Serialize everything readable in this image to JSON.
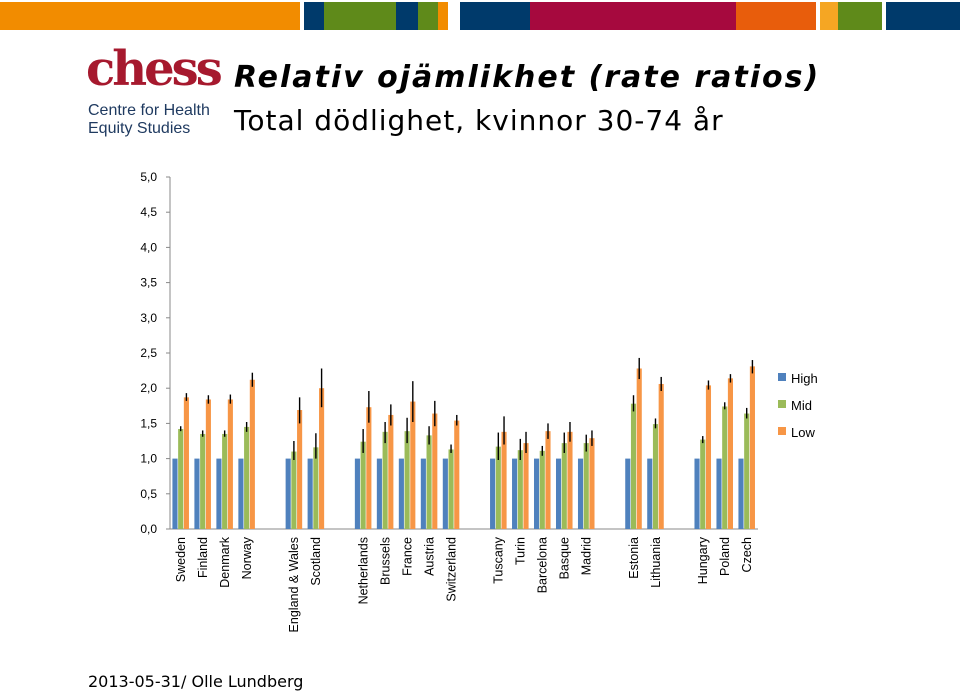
{
  "header": {
    "bar_colors": [
      "#f28c00",
      "#003a6b",
      "#5f8a1a",
      "#003a6b",
      "#5f8a1a",
      "#f28c00",
      "#003a6b",
      "#a6093e",
      "#e85d0c",
      "#f5a623",
      "#5f8a1a",
      "#003a6b"
    ],
    "logo_icon": "chess-logo",
    "logo_word": "chess",
    "logo_line1": "Centre for Health",
    "logo_line2": "Equity Studies",
    "title": "Relativ ojämlikhet (rate ratios)",
    "subtitle": "Total dödlighet, kvinnor 30-74 år"
  },
  "footer": {
    "date": "2013-05-31",
    "author": "Olle Lundberg"
  },
  "chart_data": {
    "type": "bar",
    "categories": [
      "Sweden",
      "Finland",
      "Denmark",
      "Norway",
      "England & Wales",
      "Scotland",
      "Netherlands",
      "Brussels",
      "France",
      "Austria",
      "Switzerland",
      "Tuscany",
      "Turin",
      "Barcelona",
      "Basque",
      "Madrid",
      "Estonia",
      "Lithuania",
      "Hungary",
      "Poland",
      "Czech"
    ],
    "category_groups": [
      4,
      2,
      5,
      5,
      2,
      3
    ],
    "series": [
      {
        "name": "High",
        "color": "#4f81bd",
        "values": [
          1,
          1,
          1,
          1,
          1,
          1,
          1,
          1,
          1,
          1,
          1,
          1,
          1,
          1,
          1,
          1,
          1,
          1,
          1,
          1,
          1
        ]
      },
      {
        "name": "Mid",
        "color": "#9bbb59",
        "values": [
          1.42,
          1.35,
          1.35,
          1.45,
          1.1,
          1.16,
          1.24,
          1.38,
          1.39,
          1.33,
          1.13,
          1.17,
          1.12,
          1.11,
          1.22,
          1.22,
          1.78,
          1.49,
          1.27,
          1.74,
          1.64
        ]
      },
      {
        "name": "Low",
        "color": "#f79646",
        "values": [
          1.87,
          1.84,
          1.84,
          2.12,
          1.69,
          2.0,
          1.73,
          1.62,
          1.81,
          1.64,
          1.54,
          1.38,
          1.22,
          1.39,
          1.38,
          1.29,
          2.28,
          2.06,
          2.04,
          2.14,
          2.31
        ]
      }
    ],
    "error_bars": {
      "Mid": [
        [
          1.39,
          1.46
        ],
        [
          1.31,
          1.4
        ],
        [
          1.31,
          1.4
        ],
        [
          1.38,
          1.52
        ],
        [
          0.98,
          1.25
        ],
        [
          1.0,
          1.36
        ],
        [
          1.08,
          1.42
        ],
        [
          1.22,
          1.52
        ],
        [
          1.22,
          1.58
        ],
        [
          1.2,
          1.46
        ],
        [
          1.08,
          1.2
        ],
        [
          0.98,
          1.37
        ],
        [
          0.98,
          1.28
        ],
        [
          1.04,
          1.18
        ],
        [
          1.08,
          1.37
        ],
        [
          1.1,
          1.34
        ],
        [
          1.67,
          1.9
        ],
        [
          1.43,
          1.57
        ],
        [
          1.22,
          1.32
        ],
        [
          1.7,
          1.8
        ],
        [
          1.57,
          1.72
        ]
      ],
      "Low": [
        [
          1.82,
          1.93
        ],
        [
          1.78,
          1.9
        ],
        [
          1.78,
          1.91
        ],
        [
          2.02,
          2.22
        ],
        [
          1.5,
          1.87
        ],
        [
          1.73,
          2.28
        ],
        [
          1.51,
          1.96
        ],
        [
          1.47,
          1.77
        ],
        [
          1.52,
          2.1
        ],
        [
          1.46,
          1.82
        ],
        [
          1.47,
          1.62
        ],
        [
          1.2,
          1.6
        ],
        [
          1.08,
          1.38
        ],
        [
          1.28,
          1.5
        ],
        [
          1.24,
          1.52
        ],
        [
          1.18,
          1.4
        ],
        [
          2.13,
          2.43
        ],
        [
          1.96,
          2.16
        ],
        [
          1.98,
          2.11
        ],
        [
          2.08,
          2.2
        ],
        [
          2.21,
          2.4
        ]
      ]
    },
    "ylim": [
      0,
      5
    ],
    "yticks": [
      "0,0",
      "0,5",
      "1,0",
      "1,5",
      "2,0",
      "2,5",
      "3,0",
      "3,5",
      "4,0",
      "4,5",
      "5,0"
    ],
    "grid": false,
    "legend_position": "right"
  }
}
